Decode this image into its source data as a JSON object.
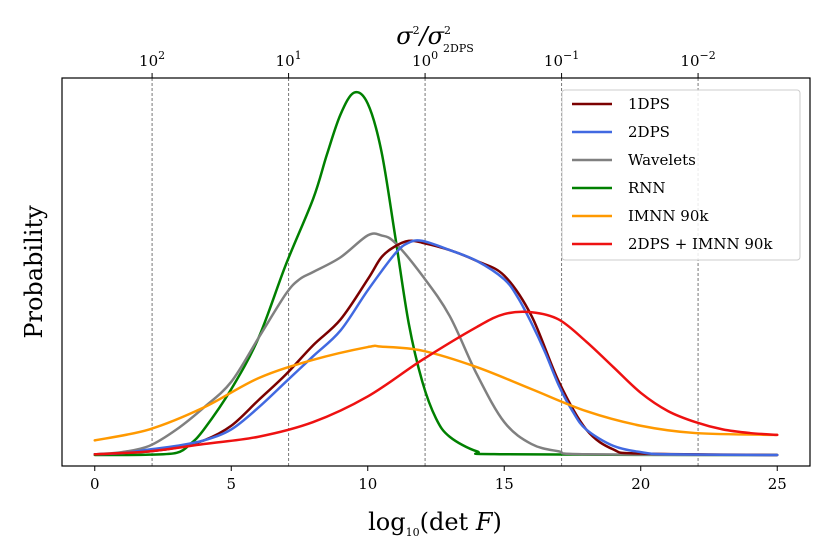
{
  "chart_data": {
    "type": "line",
    "xlabel": "log",
    "xlabel_sub": "10",
    "xlabel_rest": "(det ",
    "xlabel_var": "F",
    "xlabel_close": ")",
    "ylabel": "Probability",
    "top_label": "σ",
    "top_label_sup": "2",
    "top_label_slash": "/σ",
    "top_label_sup2": "2",
    "top_label_sub2": "2DPS",
    "xlim": [
      -1.2,
      26.2
    ],
    "ylim": [
      -0.03,
      1.03
    ],
    "x_ticks": [
      0,
      5,
      10,
      15,
      20,
      25
    ],
    "x_tick_labels": [
      "0",
      "5",
      "10",
      "15",
      "20",
      "25"
    ],
    "top_ticks": [
      {
        "x": 2.1,
        "base": "10",
        "exp": "2"
      },
      {
        "x": 7.1,
        "base": "10",
        "exp": "1"
      },
      {
        "x": 12.1,
        "base": "10",
        "exp": "0"
      },
      {
        "x": 17.1,
        "base": "10",
        "exp": "−1"
      },
      {
        "x": 22.1,
        "base": "10",
        "exp": "−2"
      }
    ],
    "grid": "dashed vertical lines at top ticks",
    "legend_position": "top-right",
    "series": [
      {
        "name": "1DPS",
        "color": "#7b0000",
        "x": [
          0,
          1,
          2,
          3,
          4,
          5,
          6,
          7,
          8,
          9,
          10,
          10.5,
          11,
          11.5,
          12,
          13,
          14,
          15,
          16,
          17,
          18,
          19,
          20,
          25
        ],
        "y": [
          0.002,
          0.005,
          0.01,
          0.02,
          0.04,
          0.08,
          0.15,
          0.22,
          0.3,
          0.37,
          0.48,
          0.54,
          0.57,
          0.585,
          0.58,
          0.56,
          0.53,
          0.49,
          0.38,
          0.2,
          0.07,
          0.015,
          0.004,
          0.0
        ]
      },
      {
        "name": "2DPS",
        "color": "#4169e1",
        "x": [
          0,
          1,
          2,
          3,
          4,
          5,
          6,
          7,
          8,
          9,
          10,
          11,
          11.5,
          12,
          13,
          14,
          15,
          15.5,
          16,
          16.5,
          17,
          17.5,
          18,
          19,
          20,
          21,
          25
        ],
        "y": [
          0.002,
          0.005,
          0.015,
          0.025,
          0.04,
          0.07,
          0.13,
          0.2,
          0.27,
          0.34,
          0.45,
          0.55,
          0.58,
          0.585,
          0.56,
          0.53,
          0.48,
          0.43,
          0.36,
          0.28,
          0.19,
          0.12,
          0.07,
          0.025,
          0.008,
          0.002,
          0.0
        ]
      },
      {
        "name": "Wavelets",
        "color": "#808080",
        "x": [
          0,
          1,
          2,
          3,
          4,
          5,
          6,
          7,
          7.5,
          8,
          9,
          10,
          10.5,
          11,
          12,
          13,
          14,
          15,
          16,
          17,
          18,
          25
        ],
        "y": [
          0.002,
          0.008,
          0.025,
          0.07,
          0.13,
          0.2,
          0.32,
          0.44,
          0.48,
          0.5,
          0.54,
          0.6,
          0.6,
          0.58,
          0.49,
          0.38,
          0.22,
          0.09,
          0.03,
          0.01,
          0.002,
          0.0
        ]
      },
      {
        "name": "RNN",
        "color": "#008000",
        "x": [
          0,
          1,
          2,
          3,
          3.5,
          4,
          5,
          6,
          7,
          8,
          8.5,
          9,
          9.5,
          10,
          10.5,
          11,
          11.5,
          12,
          12.5,
          13,
          14,
          15,
          25
        ],
        "y": [
          0.0,
          0.0,
          0.001,
          0.006,
          0.03,
          0.07,
          0.18,
          0.32,
          0.52,
          0.7,
          0.82,
          0.93,
          0.99,
          0.96,
          0.83,
          0.6,
          0.36,
          0.2,
          0.1,
          0.05,
          0.01,
          0.002,
          0.0
        ]
      },
      {
        "name": "IMNN 90k",
        "color": "#ff9900",
        "x": [
          0,
          2,
          4,
          6,
          8,
          10,
          10.5,
          12,
          14,
          16,
          18,
          20,
          22,
          25
        ],
        "y": [
          0.04,
          0.07,
          0.13,
          0.21,
          0.26,
          0.295,
          0.296,
          0.285,
          0.24,
          0.18,
          0.12,
          0.08,
          0.06,
          0.055
        ]
      },
      {
        "name": "2DPS + IMNN 90k",
        "color": "#ee1111",
        "x": [
          0,
          2,
          4,
          6,
          8,
          10,
          12,
          14,
          15,
          16,
          17,
          18,
          19,
          20,
          21,
          22,
          23,
          24,
          25
        ],
        "y": [
          0.002,
          0.01,
          0.03,
          0.05,
          0.09,
          0.16,
          0.26,
          0.35,
          0.385,
          0.39,
          0.37,
          0.31,
          0.24,
          0.17,
          0.12,
          0.09,
          0.07,
          0.06,
          0.055
        ]
      }
    ]
  }
}
